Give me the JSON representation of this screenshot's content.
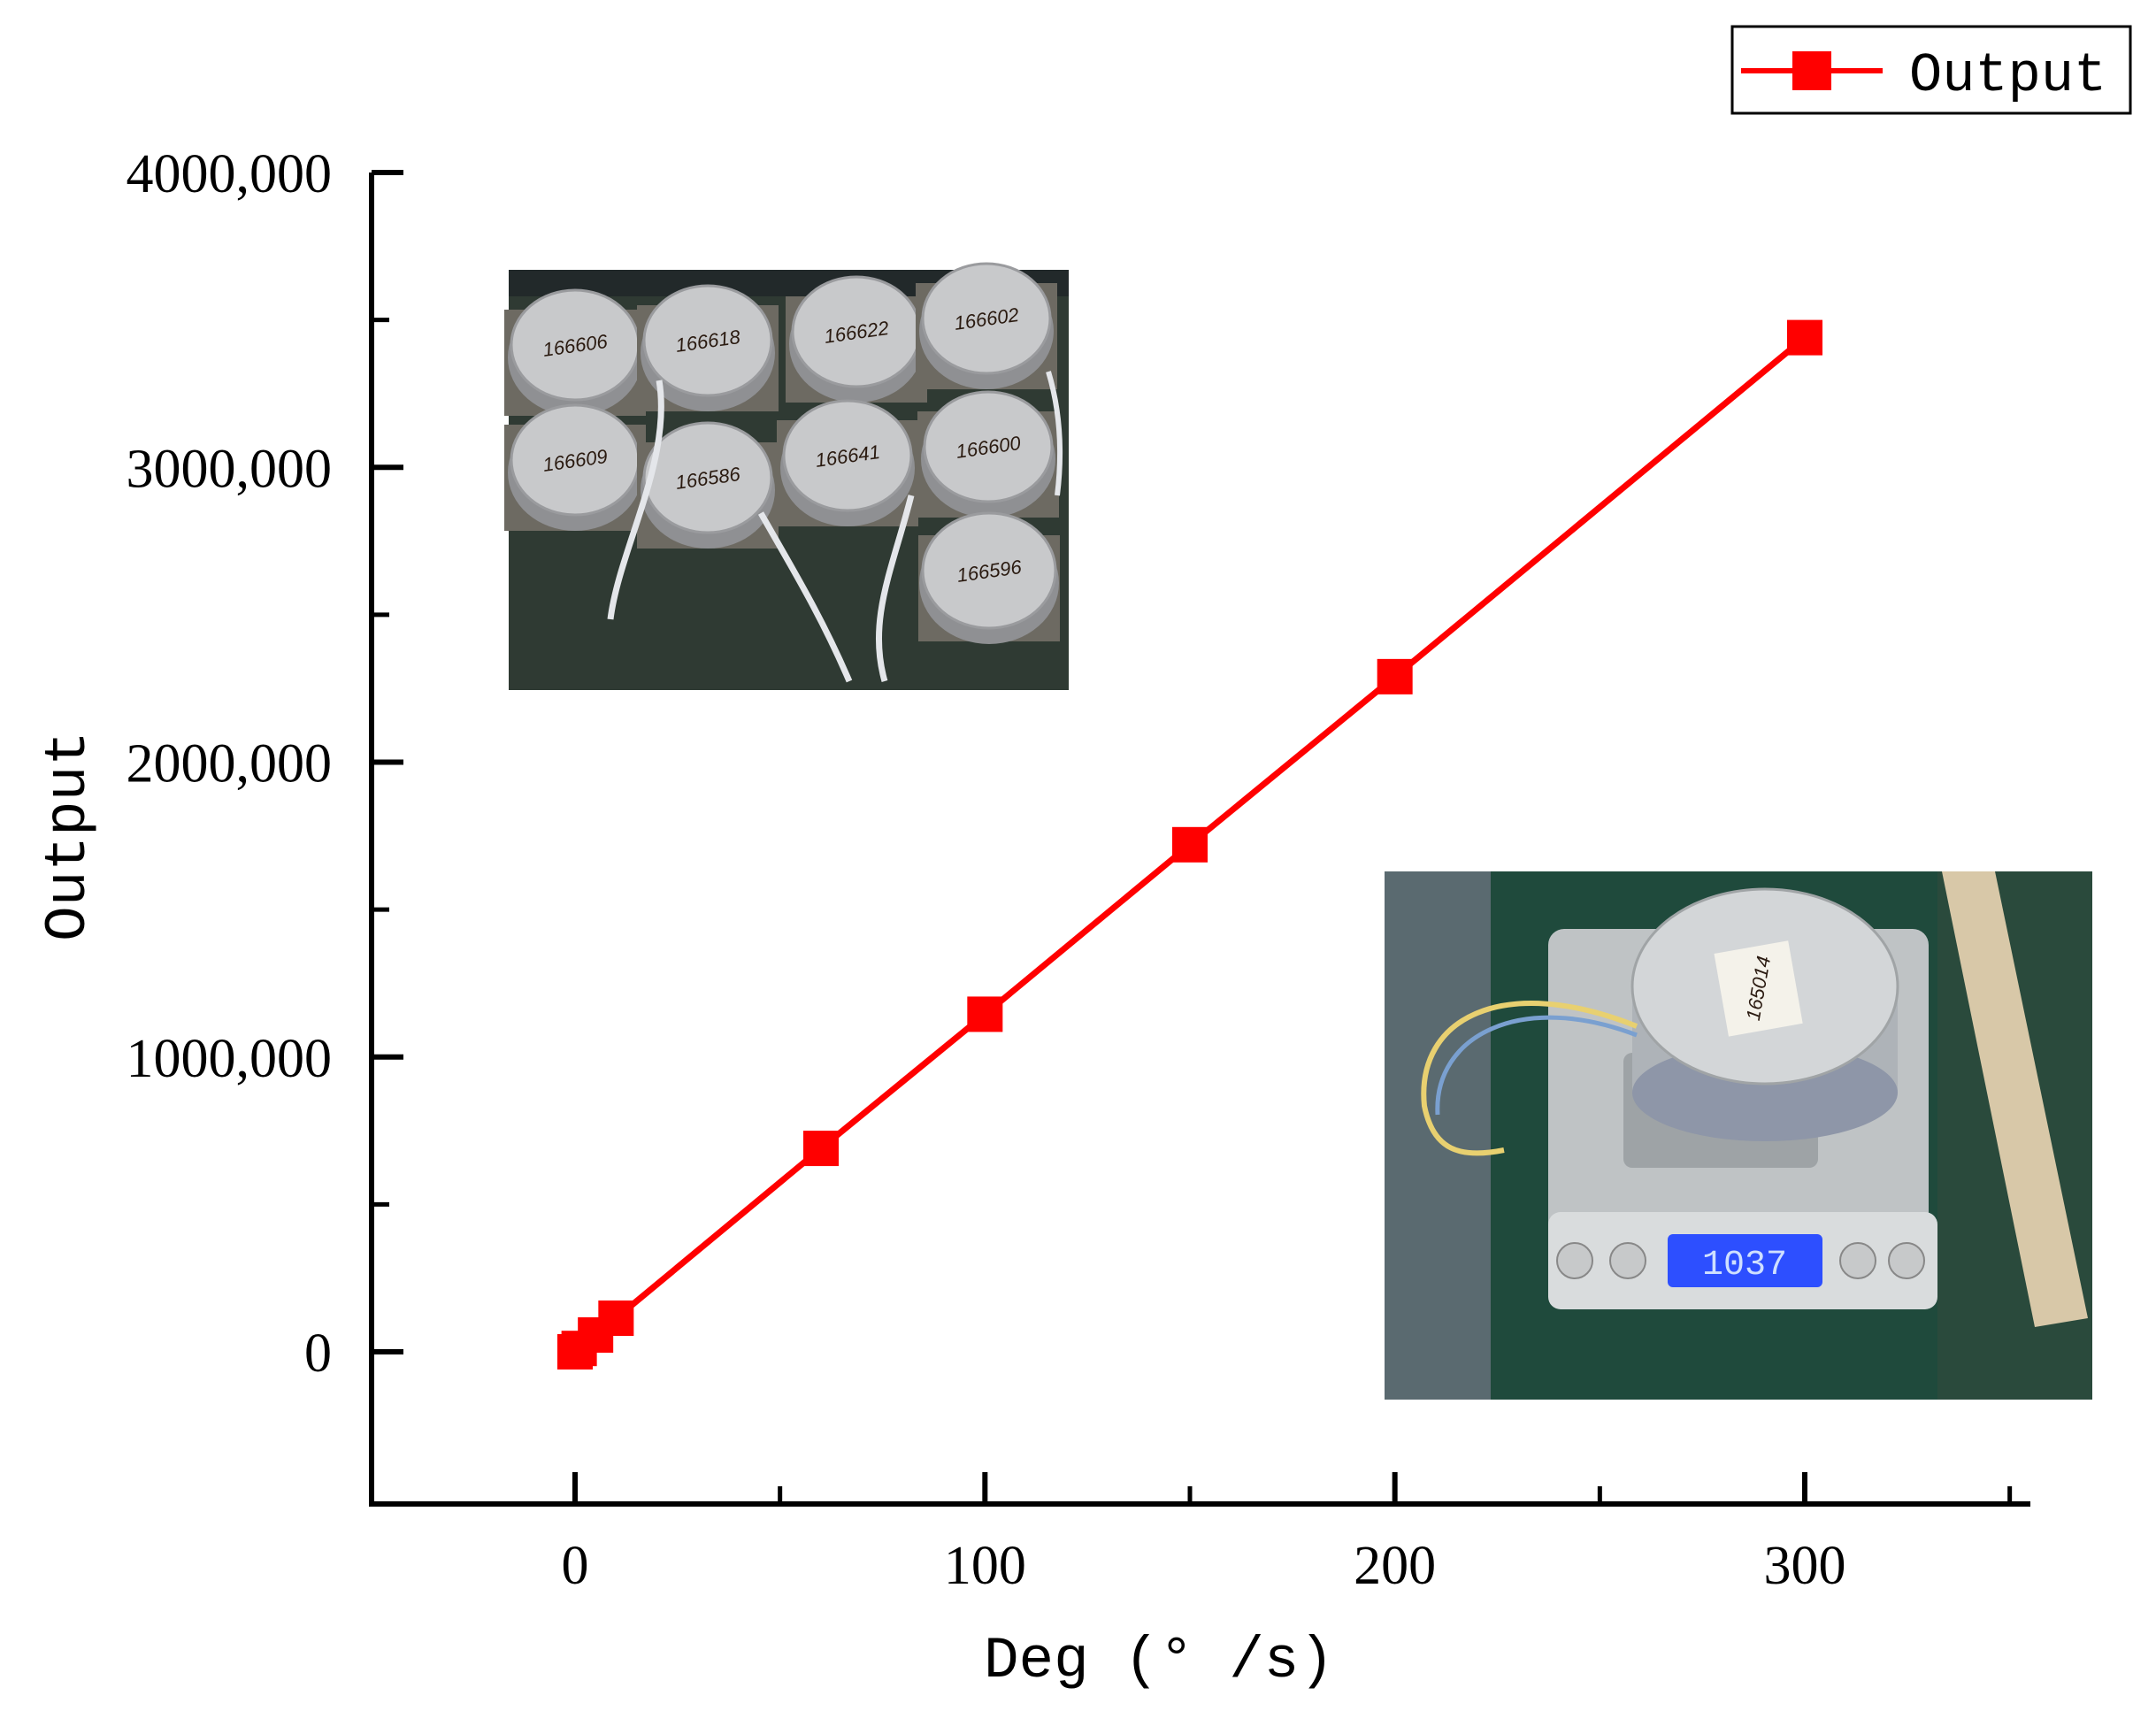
{
  "chart_data": {
    "type": "line",
    "title": "",
    "xlabel": "Deg (° /s)",
    "ylabel": "Output",
    "xlim": [
      -50,
      350
    ],
    "ylim": [
      -500000,
      4000000
    ],
    "x_ticks": [
      {
        "value": 0,
        "label": "0"
      },
      {
        "value": 100,
        "label": "100"
      },
      {
        "value": 200,
        "label": "200"
      },
      {
        "value": 300,
        "label": "300"
      }
    ],
    "x_minor_ticks": [
      50,
      150,
      250,
      350
    ],
    "y_ticks": [
      {
        "value": 0,
        "label": "0"
      },
      {
        "value": 1000000,
        "label": "1000,000"
      },
      {
        "value": 2000000,
        "label": "2000,000"
      },
      {
        "value": 3000000,
        "label": "3000,000"
      },
      {
        "value": 4000000,
        "label": "4000,000"
      }
    ],
    "y_minor_ticks": [
      500000,
      1500000,
      2500000,
      3500000
    ],
    "grid": false,
    "legend": {
      "position": "top-right"
    },
    "series": [
      {
        "name": "Output",
        "color": "#ff0000",
        "marker": "square",
        "x": [
          0,
          1,
          5,
          10,
          60,
          100,
          150,
          200,
          300
        ],
        "y": [
          0,
          11400,
          57000,
          114000,
          690000,
          1145000,
          1720000,
          2290000,
          3440000
        ]
      }
    ]
  },
  "insets": {
    "photo1": {
      "labels": [
        "166606",
        "166618",
        "166622",
        "166602",
        "166609",
        "166586",
        "166641",
        "166600",
        "166596"
      ]
    },
    "photo2": {
      "label": "165014",
      "scale_reading": "1037"
    }
  }
}
